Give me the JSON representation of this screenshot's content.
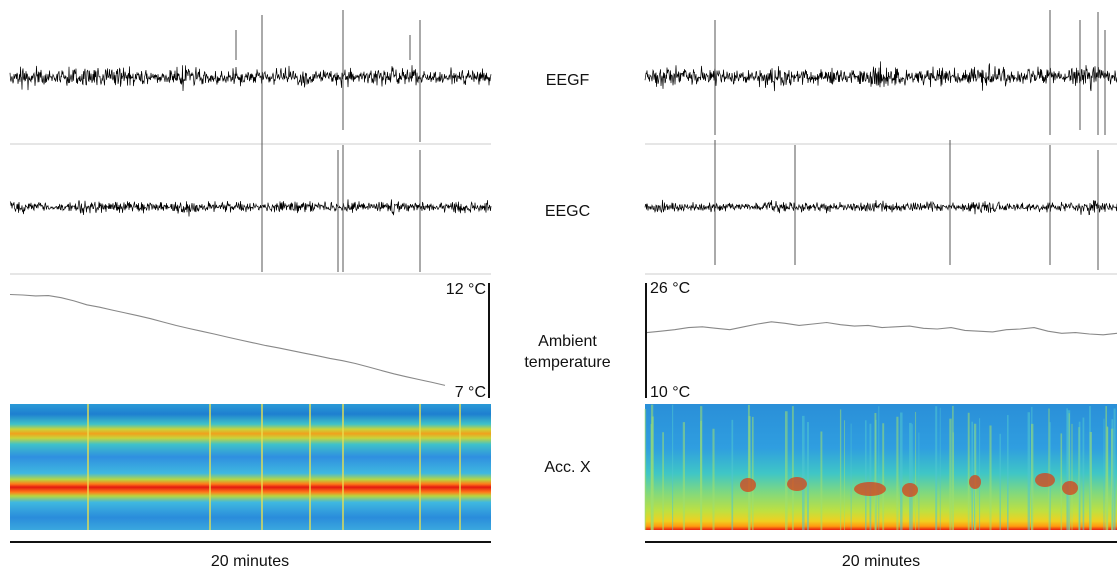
{
  "chart_data": {
    "type": "figure",
    "channels": [
      "EEGF",
      "EEGC",
      "Ambient temperature",
      "Acc. X"
    ],
    "panels": [
      {
        "side": "left",
        "time_scale_label": "20 minutes",
        "temperature": {
          "max_label": "12 °C",
          "min_label": "7 °C",
          "ylim": [
            7,
            12
          ],
          "values": [
            11.5,
            11.48,
            11.44,
            11.45,
            11.36,
            11.22,
            11.05,
            10.95,
            10.82,
            10.7,
            10.58,
            10.45,
            10.3,
            10.15,
            10.02,
            9.9,
            9.78,
            9.65,
            9.52,
            9.4,
            9.28,
            9.18,
            9.06,
            8.95,
            8.84,
            8.72,
            8.62,
            8.5,
            8.35,
            8.2,
            8.05,
            7.92,
            7.8,
            7.68,
            7.55
          ]
        },
        "spectrogram": {
          "colormap": "jet",
          "bands": [
            "orange band (upper)",
            "red band (lower)"
          ]
        }
      },
      {
        "side": "right",
        "time_scale_label": "20 minutes",
        "temperature": {
          "max_label": "26 °C",
          "min_label": "10 °C",
          "ylim": [
            10,
            26
          ],
          "values": [
            19.1,
            19.3,
            19.5,
            19.8,
            19.9,
            19.7,
            19.5,
            19.9,
            20.3,
            20.6,
            20.4,
            20.1,
            20.3,
            20.5,
            20.2,
            20.0,
            20.1,
            19.8,
            19.9,
            20.0,
            19.7,
            19.6,
            19.8,
            19.4,
            19.3,
            19.2,
            19.5,
            19.6,
            19.8,
            19.3,
            19.0,
            19.1,
            18.9,
            18.8,
            19.0
          ]
        },
        "spectrogram": {
          "colormap": "jet",
          "bands": [
            "broadband low-frequency energy"
          ]
        }
      }
    ]
  }
}
